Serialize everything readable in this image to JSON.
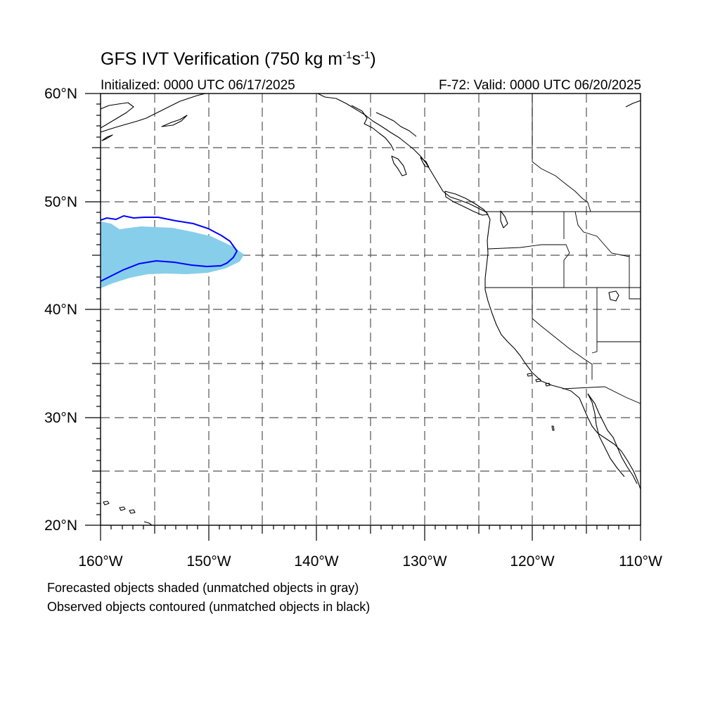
{
  "title": {
    "main": "GFS IVT Verification (750 kg m",
    "exp1": "-1",
    "mid": "s",
    "exp2": "-1",
    "end": ")"
  },
  "subtitle": {
    "initialized": "Initialized: 0000 UTC 06/17/2025",
    "valid": "F-72: Valid: 0000 UTC 06/20/2025"
  },
  "axes": {
    "lat_labels": [
      "60°N",
      "50°N",
      "40°N",
      "30°N",
      "20°N"
    ],
    "lon_labels": [
      "160°W",
      "150°W",
      "140°W",
      "130°W",
      "120°W",
      "110°W"
    ],
    "lat_range": [
      20,
      60
    ],
    "lon_range": [
      -160,
      -110
    ],
    "grid": "dashed, every 5 degrees"
  },
  "legend": {
    "forecast_note": "Forecasted objects shaded (unmatched objects in gray)",
    "observed_note": "Observed objects contoured (unmatched objects in black)"
  },
  "colors": {
    "forecast_fill": "#87CEEB",
    "observed_contour": "#0000FF",
    "coastline": "#000000",
    "grid": "#555555"
  }
}
